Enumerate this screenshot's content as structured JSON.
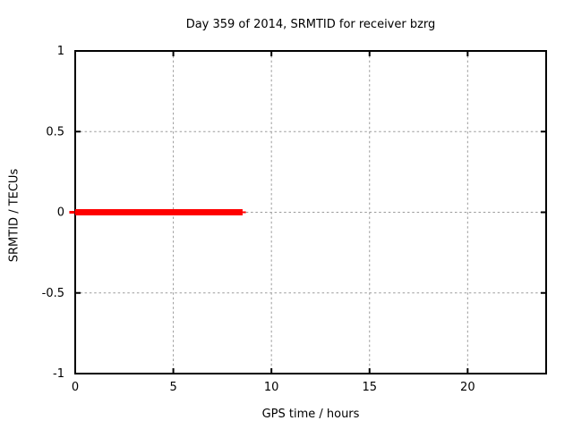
{
  "chart_data": {
    "type": "line",
    "title": "Day 359 of 2014, SRMTID for receiver bzrg",
    "xlabel": "GPS time / hours",
    "ylabel": "SRMTID / TECUs",
    "xlim": [
      0,
      24
    ],
    "ylim": [
      -1,
      1
    ],
    "xticks": [
      0,
      5,
      10,
      15,
      20
    ],
    "yticks": [
      -1,
      -0.5,
      0,
      0.5,
      1
    ],
    "grid": {
      "show": true,
      "color": "#9b9b9b",
      "dash": "2.5,2.8"
    },
    "axis_color": "#000000",
    "background_color": "#ffffff",
    "legend": "none",
    "series": [
      {
        "name": "SRMTID",
        "color": "#ff0000",
        "segments": [
          {
            "line_width": 3,
            "points": [
              [
                -0.3,
                0
              ],
              [
                -0.02,
                0
              ]
            ]
          },
          {
            "line_width": 7,
            "points": [
              [
                0,
                0
              ],
              [
                8.53,
                0
              ]
            ]
          },
          {
            "line_width": 2,
            "points": [
              [
                8.53,
                0
              ],
              [
                8.7,
                0
              ]
            ]
          }
        ],
        "note": "flat line at 0 TECUs from 0 to ~8.5 GPS hours"
      }
    ]
  }
}
